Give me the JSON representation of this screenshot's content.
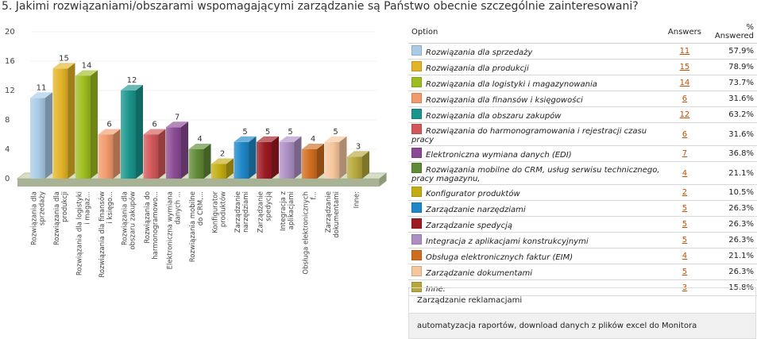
{
  "question_title": "5. Jakimi rozwiązaniami/obszarami wspomagającymi zarządzanie są Państwo obecnie szczególnie zainteresowani?",
  "table": {
    "headers": {
      "option": "Option",
      "answers": "Answers",
      "percent": "% Answered"
    },
    "rows": [
      {
        "label": "Rozwiązania dla sprzedaży",
        "answers": "11",
        "percent": "57.9%",
        "color": "#a9cbe6"
      },
      {
        "label": "Rozwiązania dla produkcji",
        "answers": "15",
        "percent": "78.9%",
        "color": "#e3b428"
      },
      {
        "label": "Rozwiązania dla logistyki i magazynowania",
        "answers": "14",
        "percent": "73.7%",
        "color": "#9dbd1e"
      },
      {
        "label": "Rozwiązania dla finansów i księgowości",
        "answers": "6",
        "percent": "31.6%",
        "color": "#f19a6c"
      },
      {
        "label": "Rozwiązania dla obszaru zakupów",
        "answers": "12",
        "percent": "63.2%",
        "color": "#1a958c"
      },
      {
        "label": "Rozwiązania do harmonogramowania i rejestracji czasu pracy",
        "answers": "6",
        "percent": "31.6%",
        "color": "#d35759"
      },
      {
        "label": "Elektroniczna wymiana danych (EDI)",
        "answers": "7",
        "percent": "36.8%",
        "color": "#8a4a94"
      },
      {
        "label": "Rozwiązania mobilne do CRM, usług serwisu technicznego, pracy magazynu,",
        "answers": "4",
        "percent": "21.1%",
        "color": "#5f8a36"
      },
      {
        "label": "Konfigurator produktów",
        "answers": "2",
        "percent": "10.5%",
        "color": "#c3ac12"
      },
      {
        "label": "Zarządzanie narzędziami",
        "answers": "5",
        "percent": "26.3%",
        "color": "#1e87c7"
      },
      {
        "label": "Zarządzanie spedycją",
        "answers": "5",
        "percent": "26.3%",
        "color": "#9c1a22"
      },
      {
        "label": "Integracja z aplikacjami konstrukcyjnymi",
        "answers": "5",
        "percent": "26.3%",
        "color": "#ad8fc4"
      },
      {
        "label": "Obsługa elektronicznych faktur (EIM)",
        "answers": "4",
        "percent": "21.1%",
        "color": "#cf6d1f"
      },
      {
        "label": "Zarządzanie dokumentami",
        "answers": "5",
        "percent": "26.3%",
        "color": "#f6c69d"
      },
      {
        "label": "Inne:",
        "answers": "3",
        "percent": "15.8%",
        "color": "#b6a73b"
      }
    ]
  },
  "other_answers": [
    "Zarządzanie reklamacjami",
    "automatyzacja raportów, download danych z plików excel do Monitora"
  ],
  "chart_data": {
    "type": "bar",
    "title": "",
    "xlabel": "",
    "ylabel": "",
    "ylim": [
      0,
      20
    ],
    "yticks": [
      "0",
      "4",
      "8",
      "12",
      "16",
      "20"
    ],
    "grid": true,
    "legend": "table-right",
    "categories": [
      "Rozwiązania dla sprzedaży",
      "Rozwiązania dla produkcji",
      "Rozwiązania dla logistyki i magaz...",
      "Rozwiązania dla finansów i księgo...",
      "Rozwiązania dla obszaru zakupów",
      "Rozwiązania do harmonogramowo...",
      "Elektroniczna wymiana danych ...",
      "Rozwiązania mobilne do CRM,...",
      "Konfigurator produktów",
      "Zarządzanie narzędziami",
      "Zarządzanie spedycją",
      "Integracja z aplikacjami",
      "Obsługa elektronicznych f...",
      "Zarządzanie dokumentami",
      "Inne:"
    ],
    "values": [
      11,
      15,
      14,
      6,
      12,
      6,
      7,
      4,
      2,
      5,
      5,
      5,
      4,
      5,
      3
    ],
    "colors": [
      "#a9cbe6",
      "#e3b428",
      "#9dbd1e",
      "#f19a6c",
      "#1a958c",
      "#d35759",
      "#8a4a94",
      "#5f8a36",
      "#c3ac12",
      "#1e87c7",
      "#9c1a22",
      "#ad8fc4",
      "#cf6d1f",
      "#f6c69d",
      "#b6a73b"
    ]
  }
}
